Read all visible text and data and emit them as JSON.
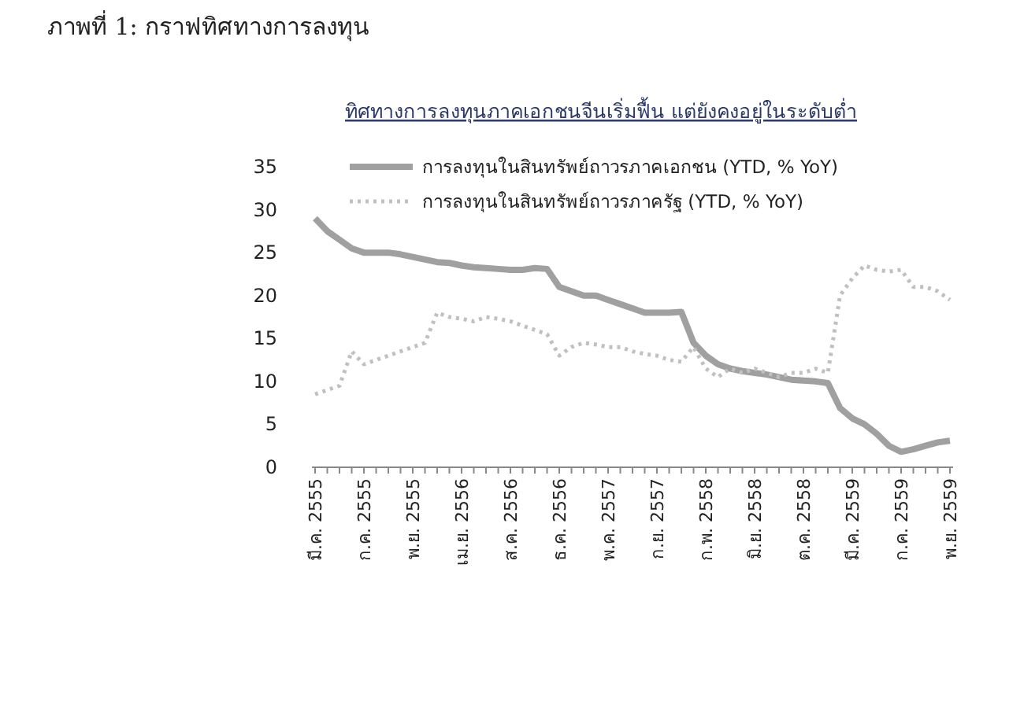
{
  "chart_data": {
    "type": "line",
    "title": "ภาพที่ 1: กราฟทิศทางการลงทุน",
    "subtitle": "ทิศทางการลงทุนภาคเอกชนจีนเริ่มฟื้น แต่ยังคงอยู่ในระดับต่ำ",
    "categories": [
      "มี.ค. 2555",
      null,
      null,
      null,
      "ก.ค. 2555",
      null,
      null,
      null,
      "พ.ย. 2555",
      null,
      null,
      null,
      "เม.ย. 2556",
      null,
      null,
      null,
      "ส.ค. 2556",
      null,
      null,
      null,
      "ธ.ค. 2556",
      null,
      null,
      null,
      "พ.ค. 2557",
      null,
      null,
      null,
      "ก.ย. 2557",
      null,
      null,
      null,
      "ก.พ. 2558",
      null,
      null,
      null,
      "มิ.ย. 2558",
      null,
      null,
      null,
      "ต.ค. 2558",
      null,
      null,
      null,
      "มี.ค. 2559",
      null,
      null,
      null,
      "ก.ค. 2559",
      null,
      null,
      null,
      "พ.ย. 2559"
    ],
    "series": [
      {
        "name": "การลงทุนในสินทรัพย์ถาวรภาคเอกชน (YTD, % YoY)",
        "color": "#a0a0a0",
        "line_style": "solid",
        "values": [
          29,
          27.5,
          26.5,
          25.5,
          25,
          25,
          25,
          24.8,
          24.5,
          24.2,
          23.9,
          23.8,
          23.5,
          23.3,
          23.2,
          23.1,
          23,
          23,
          23.2,
          23.1,
          21,
          20.5,
          20,
          20,
          19.5,
          19,
          18.5,
          18,
          18,
          18,
          18.1,
          14.5,
          13,
          12,
          11.5,
          11.2,
          11,
          10.8,
          10.5,
          10.2,
          10.1,
          10,
          9.8,
          6.9,
          5.7,
          5,
          3.9,
          2.5,
          1.8,
          2.1,
          2.5,
          2.9,
          3.1
        ]
      },
      {
        "name": "การลงทุนในสินทรัพย์ถาวรภาครัฐ (YTD, % YoY)",
        "color": "#c0c0c0",
        "line_style": "dotted",
        "values": [
          8.5,
          9,
          9.5,
          13.5,
          12,
          12.5,
          13,
          13.5,
          14,
          14.5,
          18,
          17.5,
          17.3,
          17,
          17.5,
          17.3,
          17,
          16.5,
          16,
          15.5,
          13,
          14,
          14.5,
          14.3,
          14,
          14,
          13.5,
          13.2,
          13,
          12.5,
          12.3,
          14,
          11.5,
          10.5,
          11.5,
          11,
          11.5,
          11,
          10.5,
          11,
          11,
          11.5,
          11,
          20,
          22,
          23.5,
          23,
          22.8,
          23,
          21,
          21,
          20.5,
          19.5
        ]
      }
    ],
    "ylim": [
      0,
      35
    ],
    "yticks": [
      0,
      5,
      10,
      15,
      20,
      25,
      30,
      35
    ],
    "legend": "top",
    "marker": "none"
  }
}
